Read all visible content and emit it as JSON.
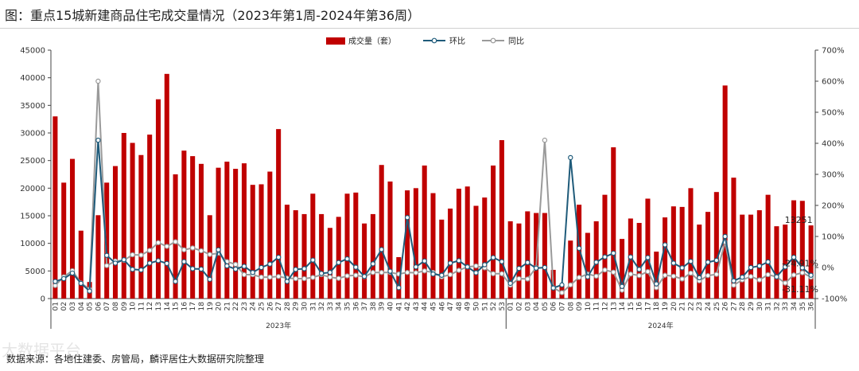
{
  "title": "图：重点15城新建商品住宅成交量情况（2023年第1周-2024年第36周）",
  "source": "数据来源：各地住建委、房管局，麟评居住大数据研究院整理",
  "watermark": "大数据平台",
  "colors": {
    "bar": "#c00000",
    "hb": "#1f5b7a",
    "tb": "#9a9a9a",
    "axis": "#444444"
  },
  "chart_data": {
    "type": "bar+line",
    "legend_position": "top-center",
    "grid": false,
    "y_left": {
      "min": 0,
      "max": 45000,
      "ticks": [
        0,
        5000,
        10000,
        15000,
        20000,
        25000,
        30000,
        35000,
        40000,
        45000
      ]
    },
    "y_right": {
      "min": -100,
      "max": 700,
      "ticks": [
        -100,
        0,
        100,
        200,
        300,
        400,
        500,
        600,
        700
      ],
      "tick_labels": [
        "-100%",
        "0%",
        "100%",
        "200%",
        "300%",
        "400%",
        "500%",
        "600%",
        "700%"
      ]
    },
    "groups": [
      {
        "label": "2023年",
        "count": 53
      },
      {
        "label": "2024年",
        "count": 36
      }
    ],
    "x_labels": [
      "01",
      "02",
      "03",
      "04",
      "05",
      "06",
      "07",
      "08",
      "09",
      "10",
      "11",
      "12",
      "13",
      "14",
      "15",
      "16",
      "17",
      "18",
      "19",
      "20",
      "21",
      "22",
      "23",
      "24",
      "25",
      "26",
      "27",
      "28",
      "29",
      "30",
      "31",
      "32",
      "33",
      "34",
      "35",
      "36",
      "37",
      "38",
      "39",
      "40",
      "41",
      "42",
      "43",
      "44",
      "45",
      "46",
      "47",
      "48",
      "49",
      "50",
      "51",
      "52",
      "53",
      "01",
      "02",
      "03",
      "04",
      "05",
      "06",
      "07",
      "08",
      "09",
      "10",
      "11",
      "12",
      "13",
      "14",
      "15",
      "16",
      "17",
      "18",
      "19",
      "20",
      "21",
      "22",
      "23",
      "24",
      "25",
      "26",
      "27",
      "28",
      "29",
      "30",
      "31",
      "32",
      "33",
      "34",
      "35",
      "36"
    ],
    "series": [
      {
        "name": "成交量（套）",
        "kind": "bar",
        "axis": "left",
        "values": [
          33000,
          21000,
          25300,
          12300,
          3000,
          15100,
          21000,
          24000,
          30000,
          28200,
          26000,
          29700,
          36100,
          40700,
          22500,
          26800,
          25800,
          24400,
          15100,
          23700,
          24800,
          23500,
          24500,
          20600,
          20700,
          23000,
          30700,
          17000,
          16000,
          15300,
          19000,
          15300,
          12800,
          14800,
          19000,
          19200,
          13600,
          15300,
          24200,
          21200,
          7500,
          19600,
          20000,
          24100,
          19100,
          14300,
          16300,
          19900,
          20300,
          16800,
          18300,
          24100,
          28700,
          14000,
          13600,
          15800,
          15500,
          15500,
          5200,
          2300,
          10500,
          17000,
          11900,
          14000,
          18800,
          27400,
          10800,
          14500,
          13700,
          18100,
          8500,
          14700,
          16700,
          16600,
          20000,
          13400,
          15700,
          19300,
          38600,
          21900,
          15200,
          15200,
          16000,
          18800,
          13100,
          13400,
          17800,
          17700,
          13251
        ]
      },
      {
        "name": "环比",
        "kind": "line",
        "axis": "right",
        "values": [
          -45,
          -36,
          -18,
          -51,
          -76,
          410,
          39,
          14,
          25,
          -6,
          -8,
          14,
          22,
          13,
          -45,
          19,
          -4,
          -5,
          -38,
          57,
          5,
          -5,
          4,
          -16,
          0,
          11,
          33,
          -45,
          -6,
          -4,
          24,
          -19,
          -16,
          16,
          28,
          1,
          -29,
          12,
          58,
          -12,
          -65,
          161,
          2,
          21,
          -21,
          -25,
          14,
          22,
          2,
          -17,
          9,
          32,
          19,
          -51,
          -3,
          16,
          -2,
          0,
          -66,
          -56,
          354,
          62,
          -30,
          17,
          34,
          46,
          -61,
          34,
          -6,
          32,
          -53,
          73,
          14,
          -1,
          20,
          -33,
          17,
          23,
          100,
          -43,
          -31,
          0,
          5,
          18,
          -30,
          2,
          33,
          -1,
          -24.91
        ]
      },
      {
        "name": "同比",
        "kind": "line",
        "axis": "right",
        "values": [
          -58,
          -30,
          -10,
          -50,
          -70,
          600,
          6,
          21,
          23,
          41,
          40,
          55,
          80,
          68,
          83,
          57,
          63,
          54,
          42,
          46,
          19,
          10,
          -23,
          -23,
          -31,
          -31,
          -29,
          -34,
          -36,
          -36,
          -32,
          -23,
          -31,
          -35,
          -27,
          -25,
          -30,
          -16,
          -16,
          -16,
          -21,
          -16,
          -17,
          -11,
          -16,
          -30,
          -23,
          -9,
          2,
          5,
          -1,
          -20,
          -20,
          -57,
          -36,
          -37,
          0,
          410,
          -65,
          -81,
          -56,
          -32,
          -21,
          -28,
          -8,
          -15,
          -73,
          -21,
          -26,
          -13,
          -65,
          -25,
          -28,
          -37,
          -18,
          -43,
          -26,
          -22,
          82,
          -57,
          -40,
          -29,
          -40,
          -23,
          -30,
          -50,
          -24,
          -17,
          -31.11
        ]
      }
    ],
    "annotations": {
      "last_bar": "13251",
      "last_hb": "-24.91%",
      "last_tb": "-31.11%"
    }
  }
}
